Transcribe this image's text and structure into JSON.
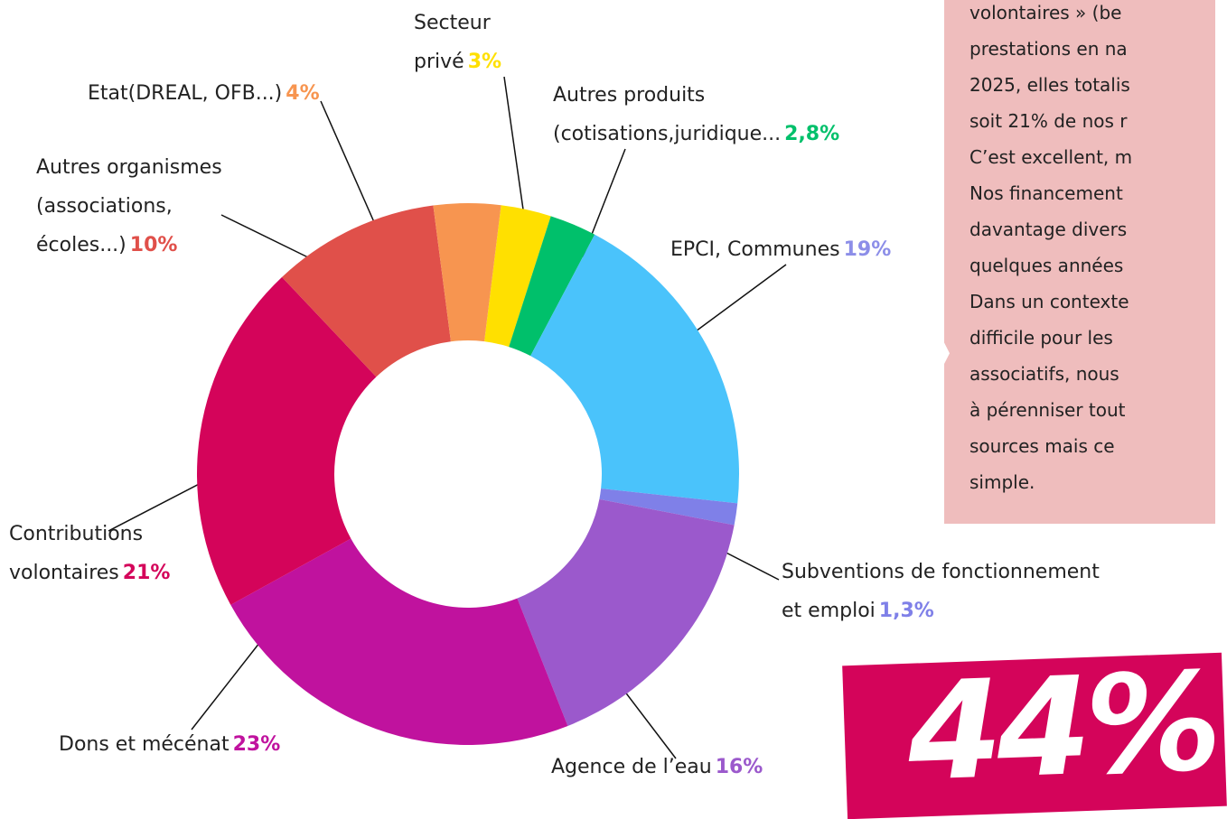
{
  "chart_data": {
    "type": "donut",
    "categories": [
      "Secteur\nprivé",
      "Autres produits\n(cotisations,juridique...",
      "EPCI, Communes",
      "Subventions de fonctionnement\net emploi",
      "Agence de l’eau",
      "Dons et mécénat",
      "Contributions\nvolontaires",
      "Autres organismes\n(associations,\nécoles...)",
      "Etat(DREAL, OFB...)"
    ],
    "values": [
      3,
      2.8,
      19,
      1.3,
      16,
      23,
      21,
      10,
      4
    ],
    "value_labels": [
      "3%",
      "2,8%",
      "19%",
      "1,3%",
      "16%",
      "23%",
      "21%",
      "10%",
      "4%"
    ],
    "colors": [
      "#ffe000",
      "#00c06b",
      "#4ac3fb",
      "#7f80e8",
      "#9b59cc",
      "#c0129e",
      "#d4045a",
      "#e0504a",
      "#f79550"
    ]
  },
  "side_text": {
    "lines": [
      "volontaires » (be",
      "prestations en na",
      "2025, elles totalis",
      "soit 21% de nos r",
      "C’est excellent, m",
      "Nos financement",
      "davantage divers",
      "quelques années",
      "Dans un contexte",
      "difficile pour les",
      "associatifs, nous",
      "à pérenniser tout",
      "sources mais ce",
      "simple."
    ]
  },
  "badge": "44%"
}
